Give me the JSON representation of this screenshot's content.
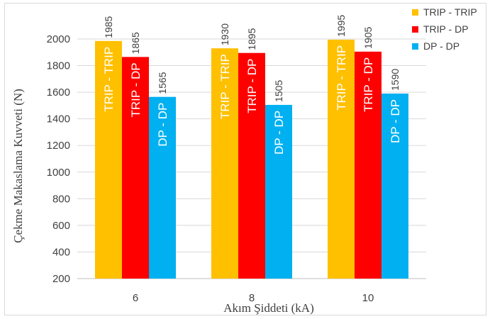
{
  "chart_data": {
    "type": "bar",
    "categories": [
      "6",
      "8",
      "10"
    ],
    "xlabel": "Akım Şiddeti (kA)",
    "ylabel": "Çekme Makaslama  Kuvveti (N)",
    "ylim": [
      200,
      2000
    ],
    "yticks": [
      200,
      400,
      600,
      800,
      1000,
      1200,
      1400,
      1600,
      1800,
      2000
    ],
    "grid": true,
    "legend_position": "top-right",
    "series": [
      {
        "name": "TRIP - TRIP",
        "color": "#ffc000",
        "values": [
          1985,
          1930,
          1995
        ]
      },
      {
        "name": "TRIP - DP",
        "color": "#ff0000",
        "values": [
          1865,
          1895,
          1905
        ]
      },
      {
        "name": "DP - DP",
        "color": "#00b0f0",
        "values": [
          1565,
          1505,
          1590
        ]
      }
    ]
  }
}
